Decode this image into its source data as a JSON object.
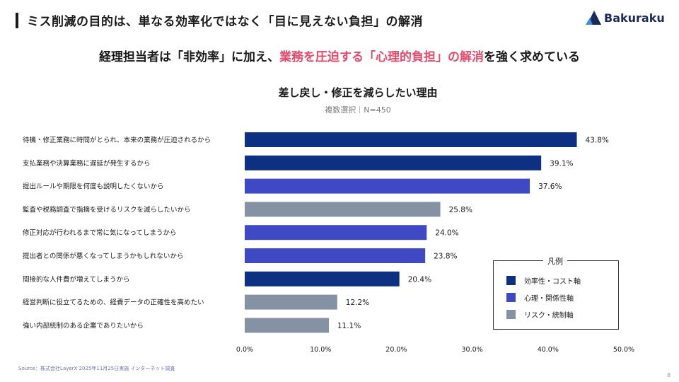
{
  "header": {
    "title": "ミス削減の目的は、単なる効率化ではなく「目に見えない負担」の解消",
    "logo_text": "Bakuraku"
  },
  "subheadline": {
    "part1": "経理担当者は「非効率」に加え、",
    "part2": "業務を圧迫する「心理的負担」の解消",
    "part3": "を強く求めている"
  },
  "chart_data": {
    "type": "bar",
    "orientation": "horizontal",
    "title": "差し戻し・修正を減らしたい理由",
    "subtitle": "複数選択｜N=450",
    "xlim": [
      0,
      50
    ],
    "xticks": [
      "0.0%",
      "10.0%",
      "20.0%",
      "30.0%",
      "40.0%",
      "50.0%"
    ],
    "categories": [
      "待機・修正業務に時間がとられ、本来の業務が圧迫されるから",
      "支払業務や決算業務に遅延が発生するから",
      "提出ルールや期限を何度も説明したくないから",
      "監査や税務調査で指摘を受けるリスクを減らしたいから",
      "修正対応が行われるまで常に気になってしまうから",
      "提出者との関係が悪くなってしまうかもしれないから",
      "間接的な人件費が増えてしまうから",
      "経営判断に役立てるための、経費データの正確性を高めたい",
      "強い内部統制のある企業でありたいから"
    ],
    "values": [
      43.8,
      39.1,
      37.6,
      25.8,
      24.0,
      23.8,
      20.4,
      12.2,
      11.1
    ],
    "value_labels": [
      "43.8%",
      "39.1%",
      "37.6%",
      "25.8%",
      "24.0%",
      "23.8%",
      "20.4%",
      "12.2%",
      "11.1%"
    ],
    "groups": [
      0,
      0,
      1,
      2,
      1,
      1,
      0,
      2,
      2
    ],
    "legend": {
      "title": "凡例",
      "placement": "bottom-right",
      "items": [
        {
          "label": "効率性・コスト軸",
          "color": "#0d3082"
        },
        {
          "label": "心理・関係性軸",
          "color": "#4049c4"
        },
        {
          "label": "リスク・統制軸",
          "color": "#8492a3"
        }
      ]
    }
  },
  "footer": {
    "source": "Source：株式会社LayerX 2025年11月25日実施 インターネット調査",
    "page_number": "8"
  }
}
